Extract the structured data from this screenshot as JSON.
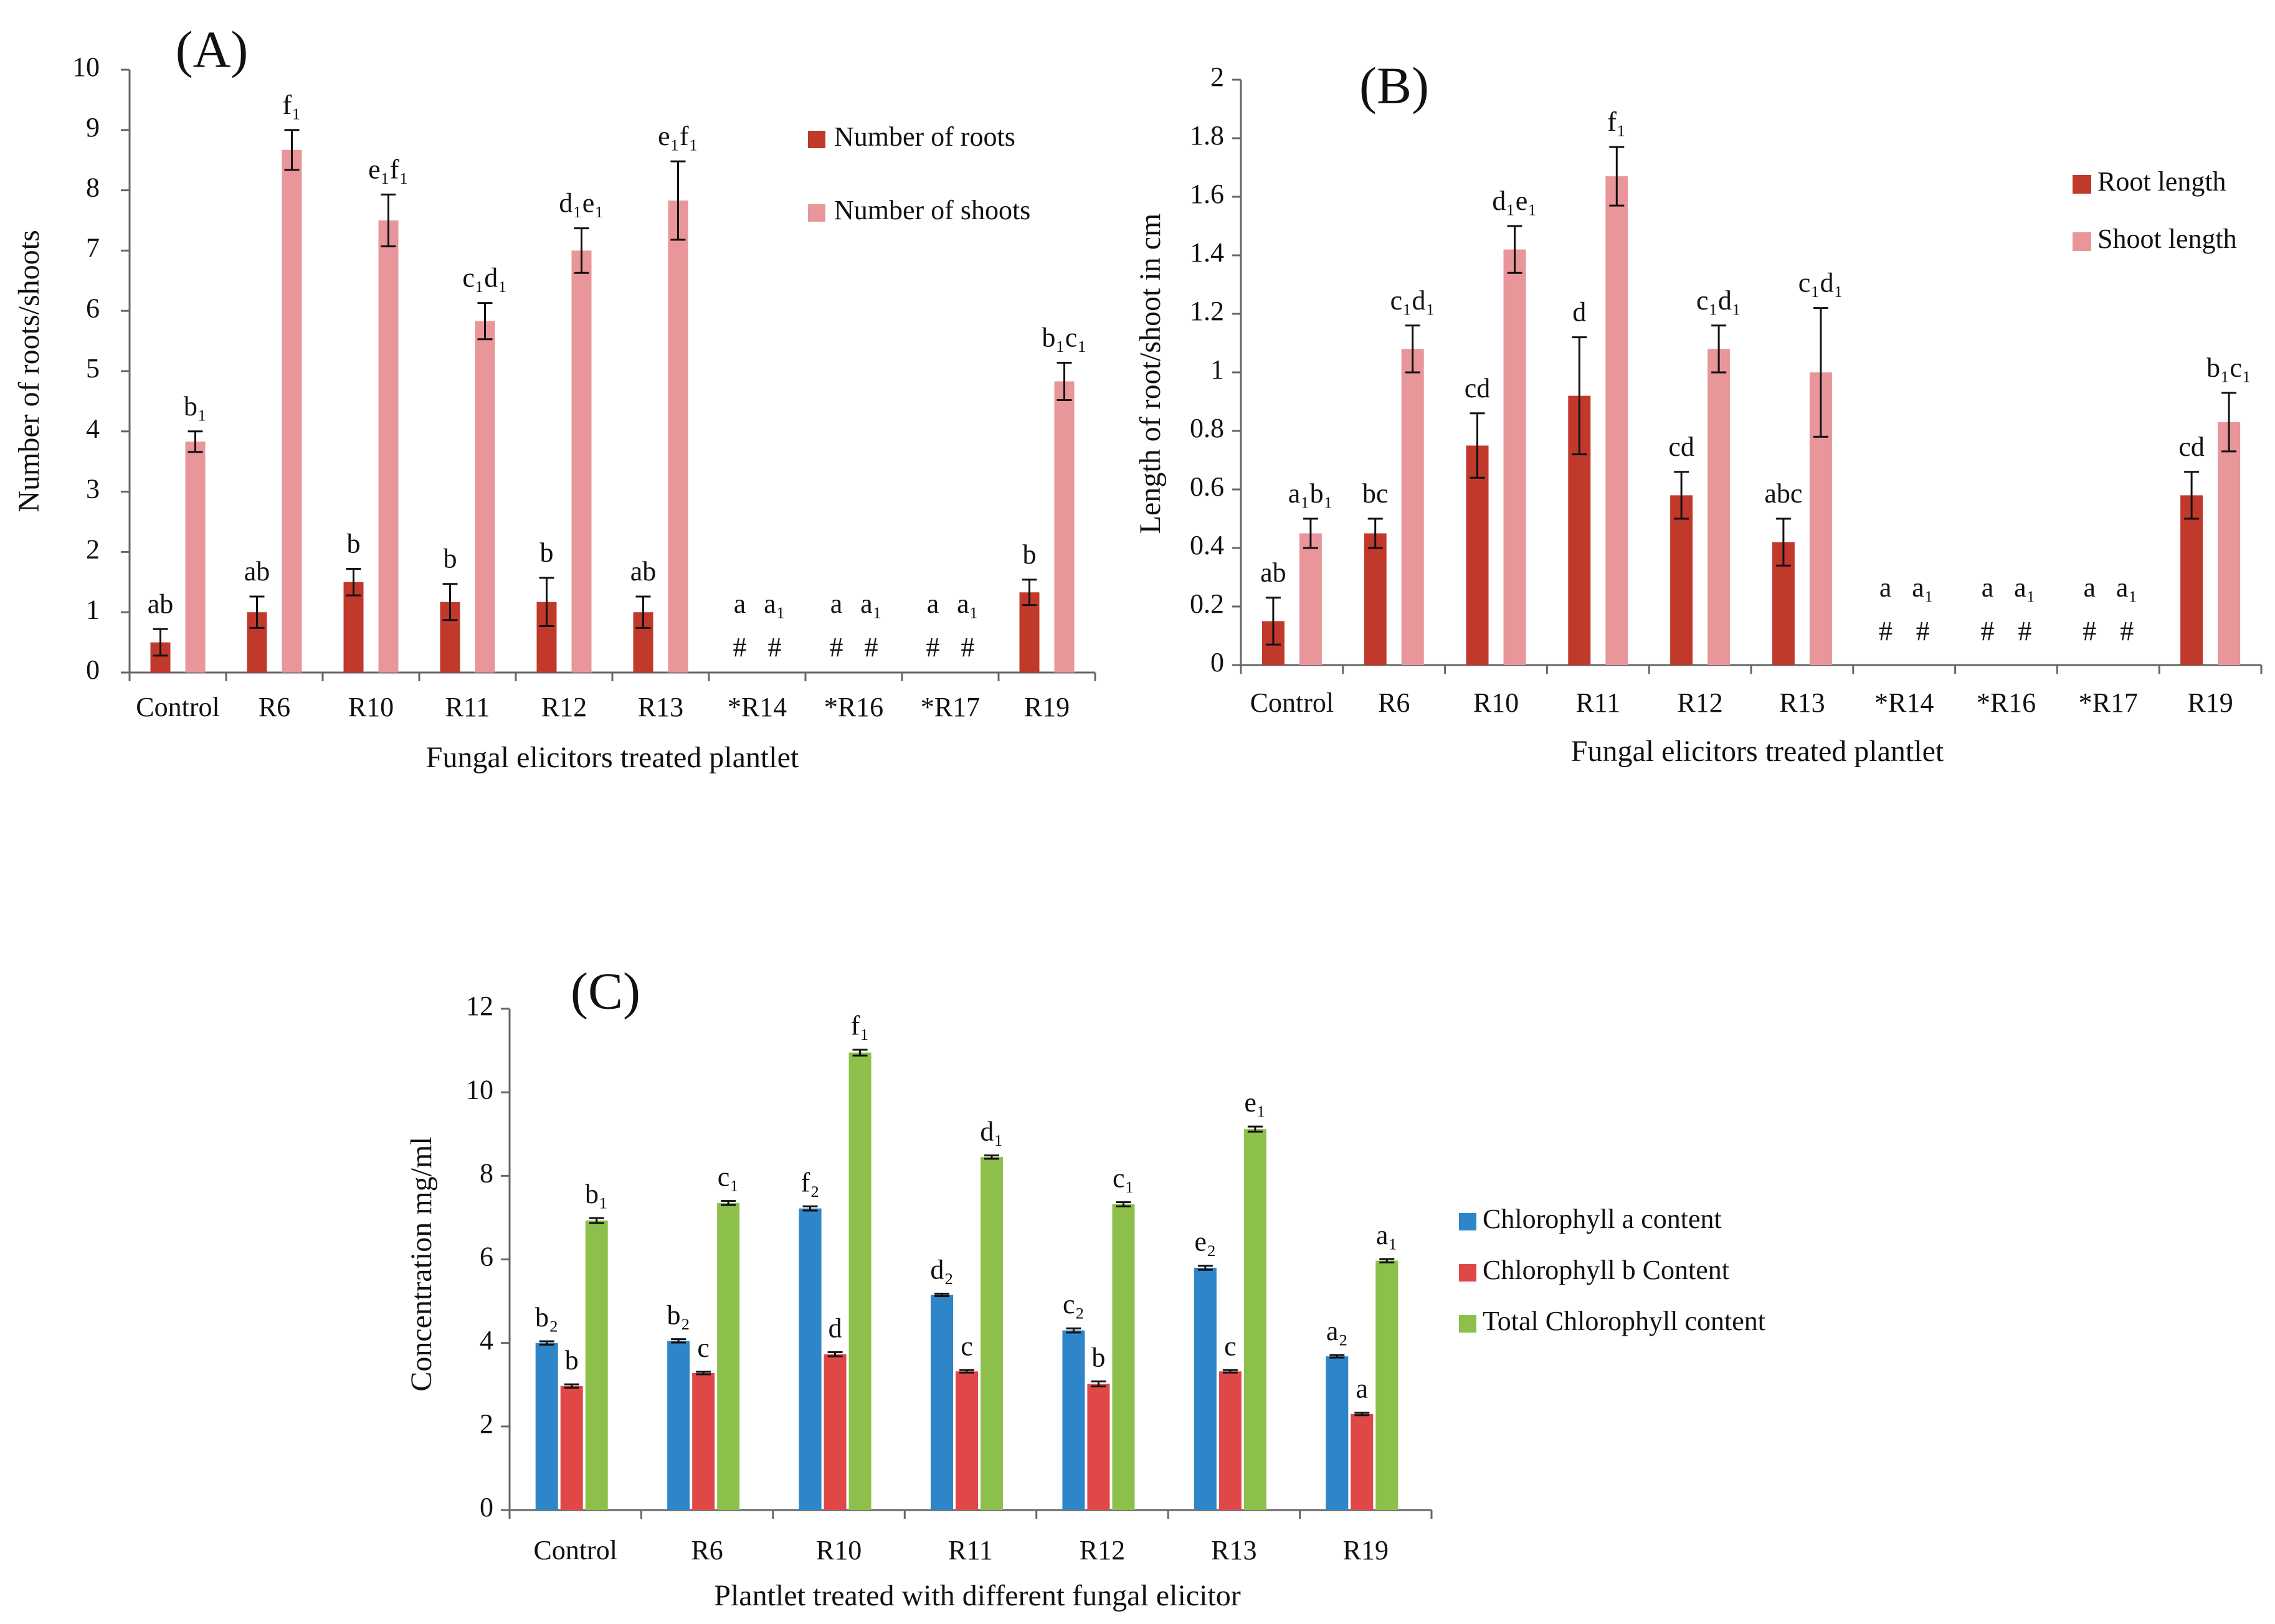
{
  "chart_data": [
    {
      "id": "A",
      "panel_label": "(A)",
      "type": "bar",
      "xlabel": "Fungal elicitors treated plantlet",
      "ylabel": "Number of roots/shoots",
      "ylim": [
        0,
        10
      ],
      "yticks": [
        0,
        1,
        2,
        3,
        4,
        5,
        6,
        7,
        8,
        9,
        10
      ],
      "legend_position": "top-right",
      "categories": [
        "Control",
        "R6",
        "R10",
        "R11",
        "R12",
        "R13",
        "*R14",
        "*R16",
        "*R17",
        "R19"
      ],
      "series": [
        {
          "name": "Number of roots",
          "color": "#c0392b",
          "values": [
            0.5,
            1.0,
            1.5,
            1.17,
            1.17,
            1.0,
            null,
            null,
            null,
            1.33
          ],
          "errors": [
            0.22,
            0.26,
            0.22,
            0.3,
            0.4,
            0.26,
            null,
            null,
            null,
            0.21
          ],
          "labels": [
            "ab",
            "ab",
            "b",
            "b",
            "b",
            "ab",
            "a",
            "a",
            "a",
            "b"
          ]
        },
        {
          "name": "Number of shoots",
          "color": "#e8969a",
          "values": [
            3.83,
            8.67,
            7.5,
            5.83,
            7.0,
            7.83,
            null,
            null,
            null,
            4.83
          ],
          "errors": [
            0.17,
            0.33,
            0.43,
            0.3,
            0.37,
            0.65,
            null,
            null,
            null,
            0.31
          ],
          "labels": [
            "b₁",
            "f₁",
            "e₁f₁",
            "c₁d₁",
            "d₁e₁",
            "e₁f₁",
            "a₁",
            "a₁",
            "a₁",
            "b₁c₁"
          ]
        }
      ],
      "absent_marker": "#"
    },
    {
      "id": "B",
      "panel_label": "(B)",
      "type": "bar",
      "xlabel": "Fungal elicitors treated  plantlet",
      "ylabel": "Length of root/shoot in cm",
      "ylim": [
        0,
        2
      ],
      "yticks": [
        "0",
        "0.2",
        "0.4",
        "0.6",
        "0.8",
        "1",
        "1.2",
        "1.4",
        "1.6",
        "1.8",
        "2"
      ],
      "legend_position": "top-right",
      "categories": [
        "Control",
        "R6",
        "R10",
        "R11",
        "R12",
        "R13",
        "*R14",
        "*R16",
        "*R17",
        "R19"
      ],
      "series": [
        {
          "name": "Root length",
          "color": "#c0392b",
          "values": [
            0.15,
            0.45,
            0.75,
            0.92,
            0.58,
            0.42,
            null,
            null,
            null,
            0.58
          ],
          "errors": [
            0.08,
            0.05,
            0.11,
            0.2,
            0.08,
            0.08,
            null,
            null,
            null,
            0.08
          ],
          "labels": [
            "ab",
            "bc",
            "cd",
            "d",
            "cd",
            "abc",
            "a",
            "a",
            "a",
            "cd"
          ]
        },
        {
          "name": "Shoot length",
          "color": "#e8969a",
          "values": [
            0.45,
            1.08,
            1.42,
            1.67,
            1.08,
            1.0,
            null,
            null,
            null,
            0.83
          ],
          "errors": [
            0.05,
            0.08,
            0.08,
            0.1,
            0.08,
            0.22,
            null,
            null,
            null,
            0.1
          ],
          "labels": [
            "a₁b₁",
            "c₁d₁",
            "d₁e₁",
            "f₁",
            "c₁d₁",
            "c₁d₁",
            "a₁",
            "a₁",
            "a₁",
            "b₁c₁"
          ]
        }
      ],
      "absent_marker": "#"
    },
    {
      "id": "C",
      "panel_label": "(C)",
      "type": "bar",
      "xlabel": "Plantlet treated with different fungal elicitor",
      "ylabel": "Concentration mg/ml",
      "ylim": [
        0,
        12
      ],
      "yticks": [
        0,
        2,
        4,
        6,
        8,
        10,
        12
      ],
      "legend_position": "right",
      "categories": [
        "Control",
        "R6",
        "R10",
        "R11",
        "R12",
        "R13",
        "R19"
      ],
      "series": [
        {
          "name": "Chlorophyll a content",
          "color": "#2e86c8",
          "values": [
            4.0,
            4.05,
            7.22,
            5.15,
            4.3,
            5.8,
            3.68
          ],
          "errors": [
            0.04,
            0.04,
            0.05,
            0.03,
            0.05,
            0.05,
            0.03
          ],
          "labels": [
            "b₂",
            "b₂",
            "f₂",
            "d₂",
            "c₂",
            "e₂",
            "a₂"
          ]
        },
        {
          "name": "Chlorophyll b Content",
          "color": "#e04848",
          "values": [
            2.97,
            3.28,
            3.73,
            3.32,
            3.02,
            3.32,
            2.3
          ],
          "errors": [
            0.04,
            0.03,
            0.05,
            0.03,
            0.06,
            0.03,
            0.03
          ],
          "labels": [
            "b",
            "c",
            "d",
            "c",
            "b",
            "c",
            "a"
          ]
        },
        {
          "name": "Total Chlorophyll content",
          "color": "#8cc04a",
          "values": [
            6.93,
            7.35,
            10.95,
            8.45,
            7.32,
            9.12,
            5.97
          ],
          "errors": [
            0.06,
            0.05,
            0.07,
            0.04,
            0.05,
            0.06,
            0.04
          ],
          "labels": [
            "b₁",
            "c₁",
            "f₁",
            "d₁",
            "c₁",
            "e₁",
            "a₁"
          ]
        }
      ]
    }
  ]
}
